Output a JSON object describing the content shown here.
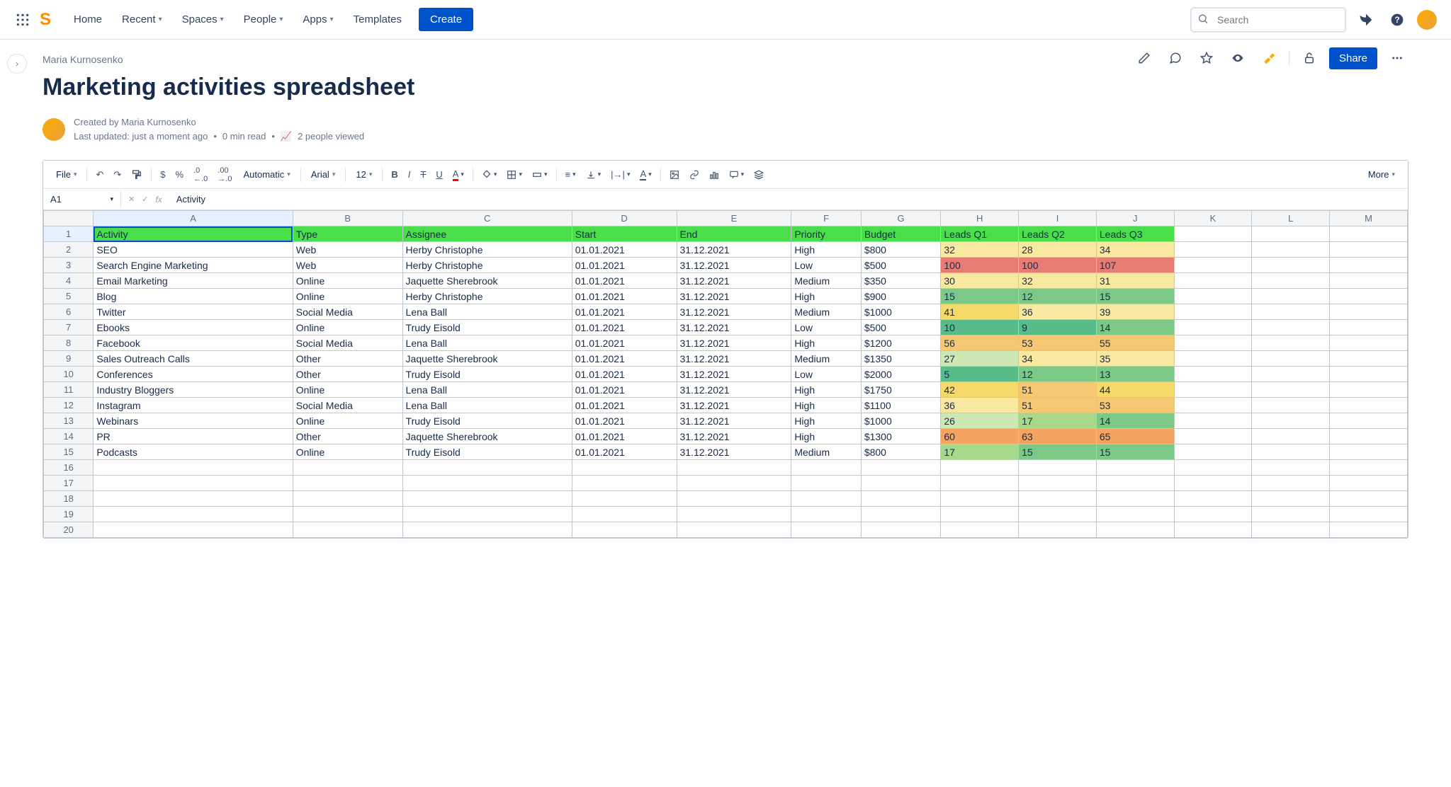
{
  "nav": {
    "home": "Home",
    "recent": "Recent",
    "spaces": "Spaces",
    "people": "People",
    "apps": "Apps",
    "templates": "Templates",
    "create": "Create",
    "search_placeholder": "Search"
  },
  "page": {
    "breadcrumb": "Maria Kurnosenko",
    "title": "Marketing activities spreadsheet",
    "created_by": "Created by Maria Kurnosenko",
    "last_updated": "Last updated: just a moment ago",
    "read_time": "0 min read",
    "viewed": "2 people viewed",
    "share": "Share"
  },
  "toolbar": {
    "file": "File",
    "format": "Automatic",
    "font": "Arial",
    "size": "12",
    "more": "More"
  },
  "formula": {
    "cell_ref": "A1",
    "value": "Activity"
  },
  "sheet": {
    "columns": [
      "A",
      "B",
      "C",
      "D",
      "E",
      "F",
      "G",
      "H",
      "I",
      "J",
      "K",
      "L",
      "M"
    ],
    "headers": [
      "Activity",
      "Type",
      "Assignee",
      "Start",
      "End",
      "Priority",
      "Budget",
      "Leads Q1",
      "Leads Q2",
      "Leads Q3"
    ],
    "header_bg": "#4ADE4A",
    "heat_colors": {
      "green_dark": "#57BB8A",
      "green": "#7CC887",
      "green_light": "#A8D98A",
      "lime": "#CDE8B5",
      "yellow_light": "#F8E8A0",
      "yellow": "#F6D96B",
      "orange_light": "#F7C873",
      "orange": "#F4A460",
      "red": "#E67C73"
    },
    "rows": [
      {
        "activity": "SEO",
        "type": "Web",
        "assignee": "Herby Christophe",
        "start": "01.01.2021",
        "end": "31.12.2021",
        "priority": "High",
        "budget": "$800",
        "q1": {
          "v": "32",
          "c": "yellow_light"
        },
        "q2": {
          "v": "28",
          "c": "yellow_light"
        },
        "q3": {
          "v": "34",
          "c": "yellow_light"
        }
      },
      {
        "activity": "Search Engine Marketing",
        "type": "Web",
        "assignee": "Herby Christophe",
        "start": "01.01.2021",
        "end": "31.12.2021",
        "priority": "Low",
        "budget": "$500",
        "q1": {
          "v": "100",
          "c": "red"
        },
        "q2": {
          "v": "100",
          "c": "red"
        },
        "q3": {
          "v": "107",
          "c": "red"
        }
      },
      {
        "activity": "Email Marketing",
        "type": "Online",
        "assignee": "Jaquette Sherebrook",
        "start": "01.01.2021",
        "end": "31.12.2021",
        "priority": "Medium",
        "budget": "$350",
        "q1": {
          "v": "30",
          "c": "yellow_light"
        },
        "q2": {
          "v": "32",
          "c": "yellow_light"
        },
        "q3": {
          "v": "31",
          "c": "yellow_light"
        }
      },
      {
        "activity": "Blog",
        "type": "Online",
        "assignee": "Herby Christophe",
        "start": "01.01.2021",
        "end": "31.12.2021",
        "priority": "High",
        "budget": "$900",
        "q1": {
          "v": "15",
          "c": "green"
        },
        "q2": {
          "v": "12",
          "c": "green"
        },
        "q3": {
          "v": "15",
          "c": "green"
        }
      },
      {
        "activity": "Twitter",
        "type": "Social Media",
        "assignee": "Lena Ball",
        "start": "01.01.2021",
        "end": "31.12.2021",
        "priority": "Medium",
        "budget": "$1000",
        "q1": {
          "v": "41",
          "c": "yellow"
        },
        "q2": {
          "v": "36",
          "c": "yellow_light"
        },
        "q3": {
          "v": "39",
          "c": "yellow_light"
        }
      },
      {
        "activity": "Ebooks",
        "type": "Online",
        "assignee": "Trudy Eisold",
        "start": "01.01.2021",
        "end": "31.12.2021",
        "priority": "Low",
        "budget": "$500",
        "q1": {
          "v": "10",
          "c": "green_dark"
        },
        "q2": {
          "v": "9",
          "c": "green_dark"
        },
        "q3": {
          "v": "14",
          "c": "green"
        }
      },
      {
        "activity": "Facebook",
        "type": "Social Media",
        "assignee": "Lena Ball",
        "start": "01.01.2021",
        "end": "31.12.2021",
        "priority": "High",
        "budget": "$1200",
        "q1": {
          "v": "56",
          "c": "orange_light"
        },
        "q2": {
          "v": "53",
          "c": "orange_light"
        },
        "q3": {
          "v": "55",
          "c": "orange_light"
        }
      },
      {
        "activity": "Sales Outreach Calls",
        "type": "Other",
        "assignee": "Jaquette Sherebrook",
        "start": "01.01.2021",
        "end": "31.12.2021",
        "priority": "Medium",
        "budget": "$1350",
        "q1": {
          "v": "27",
          "c": "lime"
        },
        "q2": {
          "v": "34",
          "c": "yellow_light"
        },
        "q3": {
          "v": "35",
          "c": "yellow_light"
        }
      },
      {
        "activity": "Conferences",
        "type": "Other",
        "assignee": "Trudy Eisold",
        "start": "01.01.2021",
        "end": "31.12.2021",
        "priority": "Low",
        "budget": "$2000",
        "q1": {
          "v": "5",
          "c": "green_dark"
        },
        "q2": {
          "v": "12",
          "c": "green"
        },
        "q3": {
          "v": "13",
          "c": "green"
        }
      },
      {
        "activity": "Industry Bloggers",
        "type": "Online",
        "assignee": "Lena Ball",
        "start": "01.01.2021",
        "end": "31.12.2021",
        "priority": "High",
        "budget": "$1750",
        "q1": {
          "v": "42",
          "c": "yellow"
        },
        "q2": {
          "v": "51",
          "c": "orange_light"
        },
        "q3": {
          "v": "44",
          "c": "yellow"
        }
      },
      {
        "activity": "Instagram",
        "type": "Social Media",
        "assignee": "Lena Ball",
        "start": "01.01.2021",
        "end": "31.12.2021",
        "priority": "High",
        "budget": "$1100",
        "q1": {
          "v": "36",
          "c": "yellow_light"
        },
        "q2": {
          "v": "51",
          "c": "orange_light"
        },
        "q3": {
          "v": "53",
          "c": "orange_light"
        }
      },
      {
        "activity": "Webinars",
        "type": "Online",
        "assignee": "Trudy Eisold",
        "start": "01.01.2021",
        "end": "31.12.2021",
        "priority": "High",
        "budget": "$1000",
        "q1": {
          "v": "26",
          "c": "lime"
        },
        "q2": {
          "v": "17",
          "c": "green_light"
        },
        "q3": {
          "v": "14",
          "c": "green"
        }
      },
      {
        "activity": "PR",
        "type": "Other",
        "assignee": "Jaquette Sherebrook",
        "start": "01.01.2021",
        "end": "31.12.2021",
        "priority": "High",
        "budget": "$1300",
        "q1": {
          "v": "60",
          "c": "orange"
        },
        "q2": {
          "v": "63",
          "c": "orange"
        },
        "q3": {
          "v": "65",
          "c": "orange"
        }
      },
      {
        "activity": "Podcasts",
        "type": "Online",
        "assignee": "Trudy Eisold",
        "start": "01.01.2021",
        "end": "31.12.2021",
        "priority": "Medium",
        "budget": "$800",
        "q1": {
          "v": "17",
          "c": "green_light"
        },
        "q2": {
          "v": "15",
          "c": "green"
        },
        "q3": {
          "v": "15",
          "c": "green"
        }
      }
    ],
    "empty_rows": [
      16,
      17,
      18,
      19,
      20
    ]
  }
}
